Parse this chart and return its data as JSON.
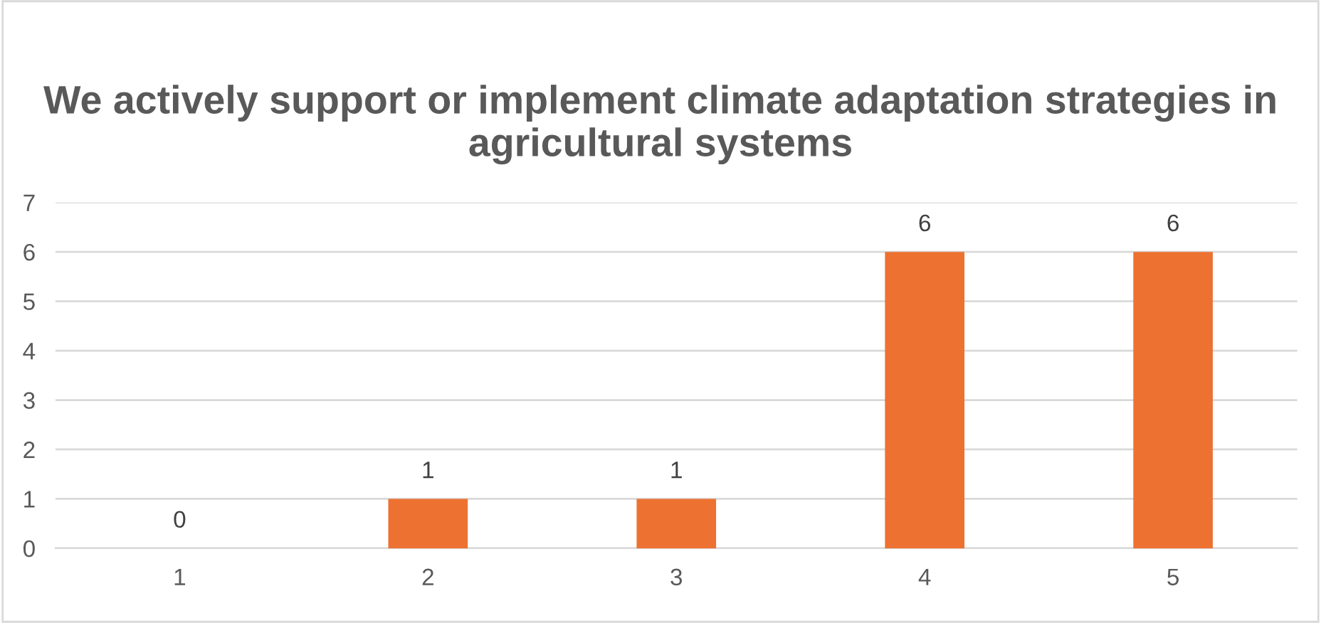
{
  "chart_data": {
    "type": "bar",
    "title": "We actively support or implement climate adaptation strategies in agricultural systems",
    "categories": [
      "1",
      "2",
      "3",
      "4",
      "5"
    ],
    "values": [
      0,
      1,
      1,
      6,
      6
    ],
    "color": "#ed7131",
    "ylim": [
      0,
      7
    ],
    "yticks": [
      0,
      1,
      2,
      3,
      4,
      5,
      6,
      7
    ],
    "grid": "y",
    "data_labels": true
  }
}
